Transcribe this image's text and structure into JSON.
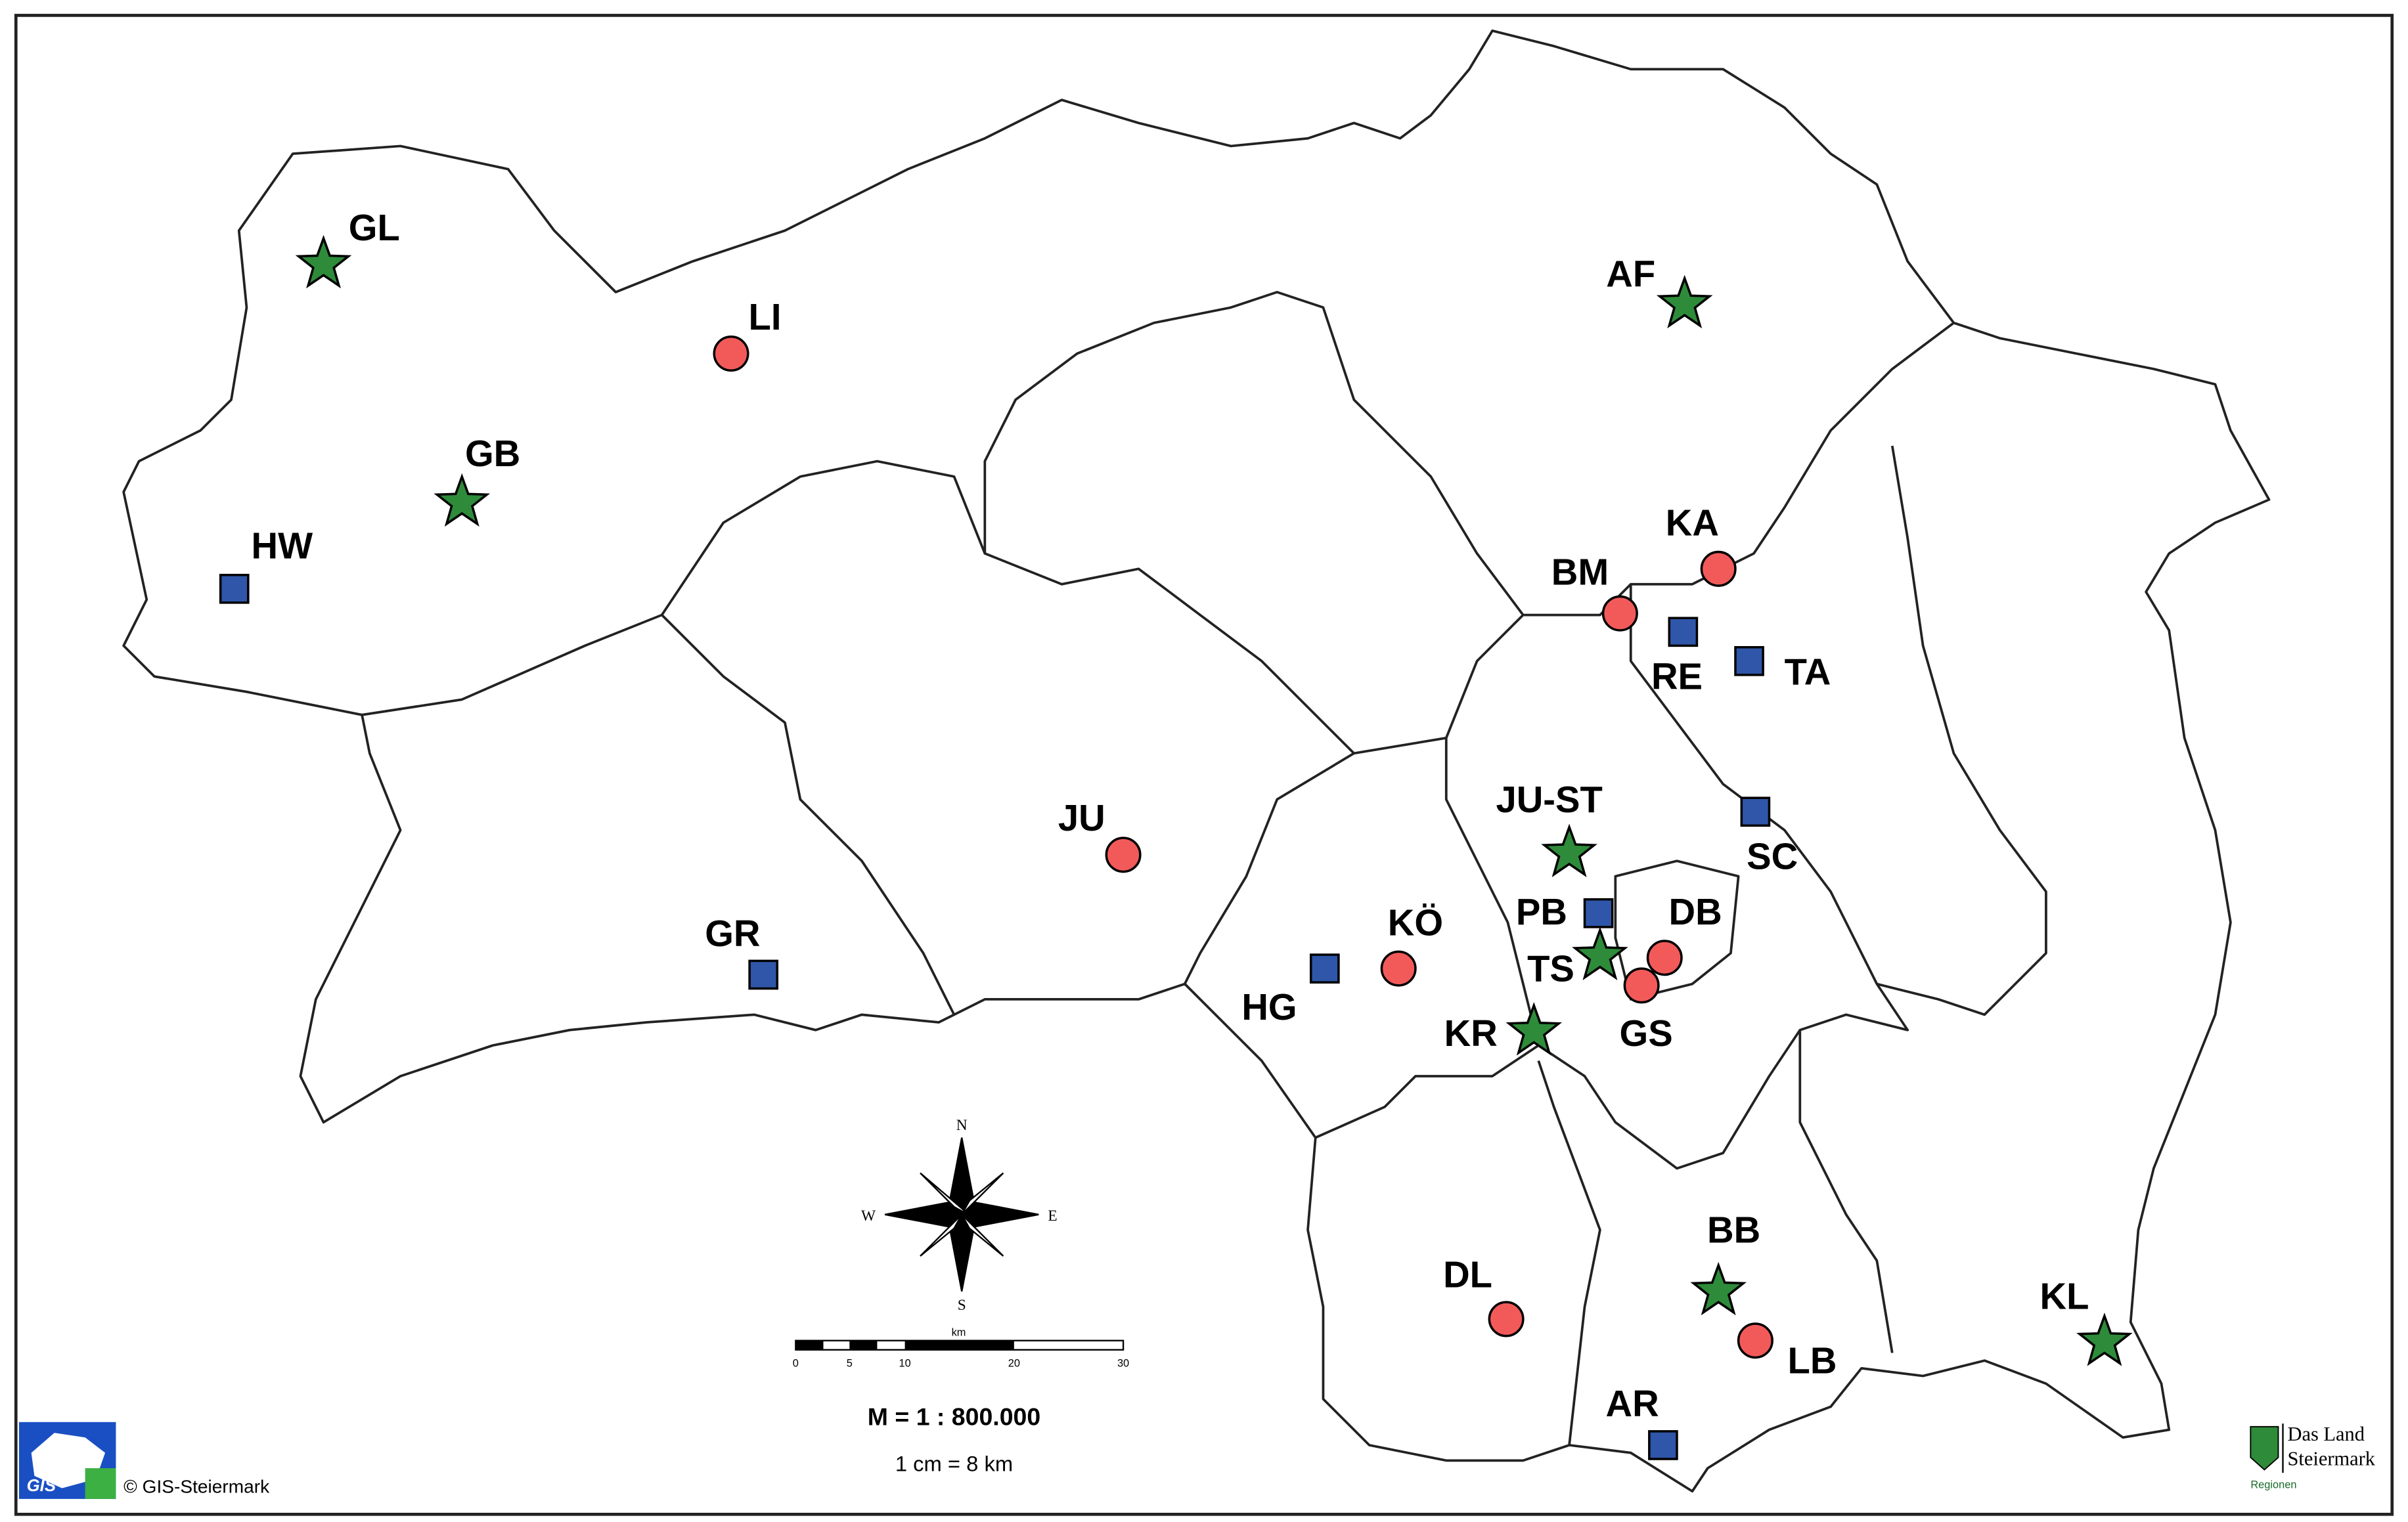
{
  "markers": [
    "GL",
    "LI",
    "GB",
    "HW",
    "AF",
    "KA",
    "BM",
    "RE",
    "TA",
    "JU",
    "JU-ST",
    "SC",
    "GR",
    "KÖ",
    "PB",
    "DB",
    "HG",
    "TS",
    "GS",
    "KR",
    "DL",
    "BB",
    "LB",
    "KL",
    "AR"
  ],
  "compass": {
    "north": "N",
    "east": "E",
    "south": "S",
    "west": "W"
  },
  "scale_bar": {
    "unit": "km",
    "labels": [
      "0",
      "5",
      "10",
      "20",
      "30"
    ]
  },
  "scale": "M = 1 : 800.000",
  "scale_note": "1 cm = 8 km",
  "logo_left": {
    "text": "GIS",
    "credit": "© GIS-Steiermark"
  },
  "logo_right": {
    "line1": "Das Land",
    "line2": "Steiermark",
    "link": "Regionen"
  }
}
